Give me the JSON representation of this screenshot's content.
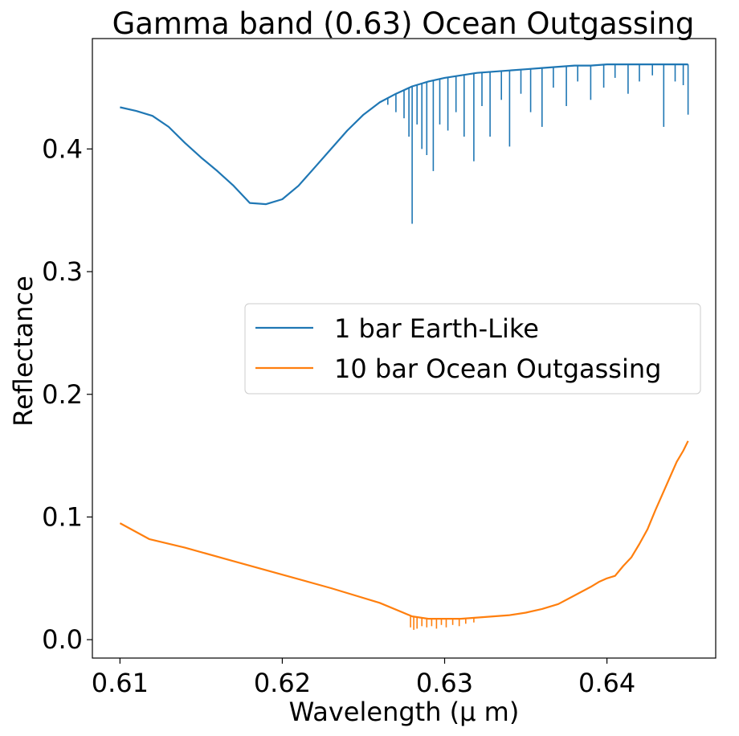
{
  "chart_data": {
    "type": "line",
    "title": "Gamma band (0.63) Ocean Outgassing",
    "xlabel": "Wavelength (μ m)",
    "ylabel": "Reflectance",
    "xlim": [
      0.6083,
      0.6467
    ],
    "ylim": [
      -0.015,
      0.49
    ],
    "xticks": [
      0.61,
      0.62,
      0.63,
      0.64
    ],
    "xtick_labels": [
      "0.61",
      "0.62",
      "0.63",
      "0.64"
    ],
    "yticks": [
      0.0,
      0.1,
      0.2,
      0.3,
      0.4
    ],
    "ytick_labels": [
      "0.0",
      "0.1",
      "0.2",
      "0.3",
      "0.4"
    ],
    "grid": false,
    "legend_position": "center-right",
    "series": [
      {
        "name": "1 bar Earth-Like",
        "color": "#1f77b4",
        "x": [
          0.61,
          0.611,
          0.612,
          0.613,
          0.614,
          0.615,
          0.616,
          0.617,
          0.618,
          0.619,
          0.62,
          0.621,
          0.622,
          0.623,
          0.624,
          0.625,
          0.626,
          0.627,
          0.6275,
          0.628,
          0.6285,
          0.629,
          0.63,
          0.631,
          0.632,
          0.633,
          0.634,
          0.635,
          0.636,
          0.637,
          0.638,
          0.639,
          0.64,
          0.641,
          0.642,
          0.643,
          0.644,
          0.645
        ],
        "values": [
          0.434,
          0.431,
          0.427,
          0.418,
          0.405,
          0.393,
          0.382,
          0.37,
          0.356,
          0.355,
          0.359,
          0.37,
          0.385,
          0.4,
          0.415,
          0.428,
          0.438,
          0.445,
          0.448,
          0.451,
          0.453,
          0.455,
          0.458,
          0.46,
          0.462,
          0.463,
          0.464,
          0.465,
          0.466,
          0.467,
          0.468,
          0.468,
          0.469,
          0.469,
          0.469,
          0.469,
          0.469,
          0.469
        ],
        "absorption_lines": [
          {
            "x": 0.6265,
            "y": 0.436
          },
          {
            "x": 0.627,
            "y": 0.43
          },
          {
            "x": 0.6275,
            "y": 0.425
          },
          {
            "x": 0.6278,
            "y": 0.41
          },
          {
            "x": 0.628,
            "y": 0.339
          },
          {
            "x": 0.6283,
            "y": 0.42
          },
          {
            "x": 0.6286,
            "y": 0.4
          },
          {
            "x": 0.6289,
            "y": 0.395
          },
          {
            "x": 0.6293,
            "y": 0.382
          },
          {
            "x": 0.6297,
            "y": 0.42
          },
          {
            "x": 0.6302,
            "y": 0.415
          },
          {
            "x": 0.6307,
            "y": 0.43
          },
          {
            "x": 0.6312,
            "y": 0.41
          },
          {
            "x": 0.6318,
            "y": 0.39
          },
          {
            "x": 0.6323,
            "y": 0.435
          },
          {
            "x": 0.6328,
            "y": 0.41
          },
          {
            "x": 0.6335,
            "y": 0.44
          },
          {
            "x": 0.634,
            "y": 0.402
          },
          {
            "x": 0.6347,
            "y": 0.445
          },
          {
            "x": 0.6353,
            "y": 0.43
          },
          {
            "x": 0.636,
            "y": 0.418
          },
          {
            "x": 0.6367,
            "y": 0.45
          },
          {
            "x": 0.6375,
            "y": 0.435
          },
          {
            "x": 0.6382,
            "y": 0.455
          },
          {
            "x": 0.639,
            "y": 0.44
          },
          {
            "x": 0.6398,
            "y": 0.45
          },
          {
            "x": 0.6405,
            "y": 0.458
          },
          {
            "x": 0.6413,
            "y": 0.445
          },
          {
            "x": 0.642,
            "y": 0.455
          },
          {
            "x": 0.6428,
            "y": 0.46
          },
          {
            "x": 0.6435,
            "y": 0.418
          },
          {
            "x": 0.6442,
            "y": 0.455
          },
          {
            "x": 0.6447,
            "y": 0.452
          },
          {
            "x": 0.645,
            "y": 0.428
          }
        ]
      },
      {
        "name": "10 bar Ocean Outgassing",
        "color": "#ff7f0e",
        "x": [
          0.61,
          0.6118,
          0.614,
          0.617,
          0.62,
          0.623,
          0.626,
          0.628,
          0.629,
          0.63,
          0.631,
          0.632,
          0.633,
          0.634,
          0.635,
          0.636,
          0.637,
          0.638,
          0.639,
          0.6395,
          0.64,
          0.6405,
          0.641,
          0.6415,
          0.642,
          0.6425,
          0.643,
          0.6435,
          0.644,
          0.6443,
          0.6447,
          0.645
        ],
        "values": [
          0.095,
          0.082,
          0.075,
          0.064,
          0.053,
          0.042,
          0.03,
          0.019,
          0.017,
          0.017,
          0.017,
          0.018,
          0.019,
          0.02,
          0.022,
          0.025,
          0.029,
          0.036,
          0.043,
          0.047,
          0.05,
          0.052,
          0.06,
          0.067,
          0.078,
          0.09,
          0.106,
          0.121,
          0.136,
          0.145,
          0.154,
          0.162
        ],
        "absorption_lines": [
          {
            "x": 0.6279,
            "y": 0.01
          },
          {
            "x": 0.6281,
            "y": 0.008
          },
          {
            "x": 0.6283,
            "y": 0.009
          },
          {
            "x": 0.6286,
            "y": 0.011
          },
          {
            "x": 0.6289,
            "y": 0.01
          },
          {
            "x": 0.6292,
            "y": 0.011
          },
          {
            "x": 0.6295,
            "y": 0.009
          },
          {
            "x": 0.6298,
            "y": 0.012
          },
          {
            "x": 0.6301,
            "y": 0.01
          },
          {
            "x": 0.6305,
            "y": 0.012
          },
          {
            "x": 0.6309,
            "y": 0.011
          },
          {
            "x": 0.6313,
            "y": 0.013
          },
          {
            "x": 0.6318,
            "y": 0.014
          }
        ]
      }
    ]
  }
}
